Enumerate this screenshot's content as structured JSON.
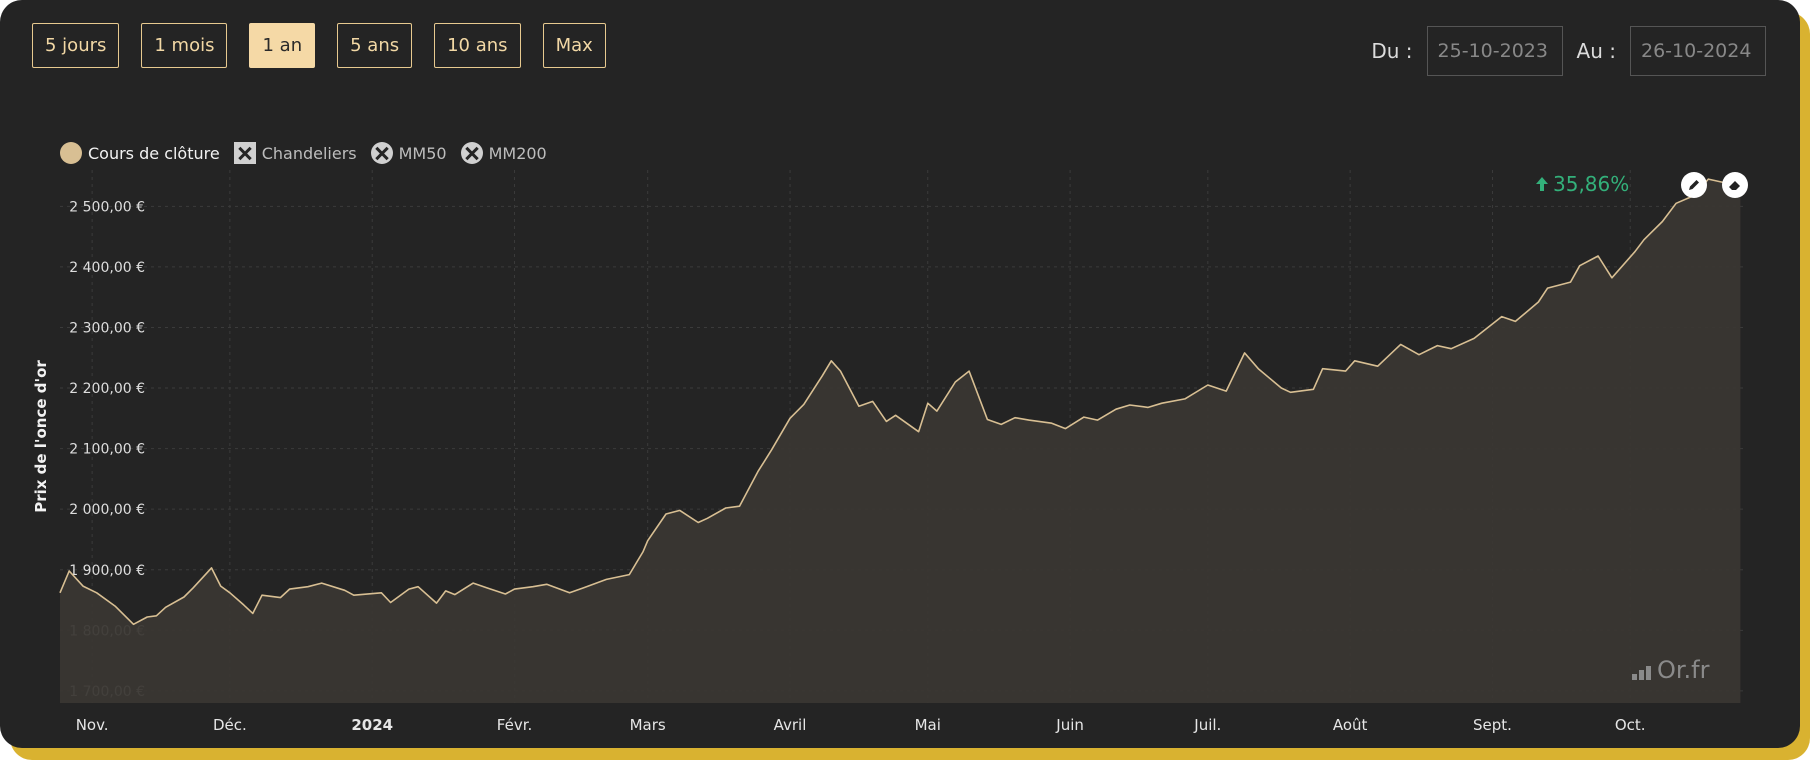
{
  "range_buttons": [
    {
      "label": "5 jours",
      "active": false
    },
    {
      "label": "1 mois",
      "active": false
    },
    {
      "label": "1 an",
      "active": true
    },
    {
      "label": "5 ans",
      "active": false
    },
    {
      "label": "10 ans",
      "active": false
    },
    {
      "label": "Max",
      "active": false
    }
  ],
  "date_range": {
    "from_label": "Du :",
    "from_value": "25-10-2023",
    "to_label": "Au :",
    "to_value": "26-10-2024"
  },
  "legend": [
    {
      "label": "Cours de clôture",
      "enabled": true
    },
    {
      "label": "Chandeliers",
      "enabled": false
    },
    {
      "label": "MM50",
      "enabled": false
    },
    {
      "label": "MM200",
      "enabled": false
    }
  ],
  "performance": "35,86%",
  "performance_color": "#33b07a",
  "brand": "Or.fr",
  "colors": {
    "line": "#d8bf93",
    "area": "#3a3733",
    "accent": "#f5d9a6",
    "frame": "#d9b230"
  },
  "chart_data": {
    "type": "area",
    "ylabel": "Prix de l'once d'or",
    "ylim": [
      1680,
      2560
    ],
    "yticks": [
      1700,
      1800,
      1900,
      2000,
      2100,
      2200,
      2300,
      2400,
      2500
    ],
    "ytick_labels": [
      "1 700,00 €",
      "1 800,00 €",
      "1 900,00 €",
      "2 000,00 €",
      "2 100,00 €",
      "2 200,00 €",
      "2 300,00 €",
      "2 400,00 €",
      "2 500,00 €"
    ],
    "xlim": [
      "2023-10-25",
      "2024-10-26"
    ],
    "xticks": [
      {
        "date": "2023-11-01",
        "label": "Nov.",
        "bold": false
      },
      {
        "date": "2023-12-01",
        "label": "Déc.",
        "bold": false
      },
      {
        "date": "2024-01-01",
        "label": "2024",
        "bold": true
      },
      {
        "date": "2024-02-01",
        "label": "Févr.",
        "bold": false
      },
      {
        "date": "2024-03-01",
        "label": "Mars",
        "bold": false
      },
      {
        "date": "2024-04-01",
        "label": "Avril",
        "bold": false
      },
      {
        "date": "2024-05-01",
        "label": "Mai",
        "bold": false
      },
      {
        "date": "2024-06-01",
        "label": "Juin",
        "bold": false
      },
      {
        "date": "2024-07-01",
        "label": "Juil.",
        "bold": false
      },
      {
        "date": "2024-08-01",
        "label": "Août",
        "bold": false
      },
      {
        "date": "2024-09-01",
        "label": "Sept.",
        "bold": false
      },
      {
        "date": "2024-10-01",
        "label": "Oct.",
        "bold": false
      }
    ],
    "grid": true,
    "series": [
      {
        "x": [
          "2023-10-25",
          "2023-10-27",
          "2023-10-30",
          "2023-11-02",
          "2023-11-06",
          "2023-11-08",
          "2023-11-10",
          "2023-11-13",
          "2023-11-15",
          "2023-11-17",
          "2023-11-21",
          "2023-11-23",
          "2023-11-27",
          "2023-11-29",
          "2023-12-01",
          "2023-12-04",
          "2023-12-06",
          "2023-12-08",
          "2023-12-12",
          "2023-12-14",
          "2023-12-18",
          "2023-12-21",
          "2023-12-26",
          "2023-12-28",
          "2024-01-03",
          "2024-01-05",
          "2024-01-09",
          "2024-01-11",
          "2024-01-15",
          "2024-01-17",
          "2024-01-19",
          "2024-01-23",
          "2024-01-26",
          "2024-01-30",
          "2024-02-01",
          "2024-02-05",
          "2024-02-08",
          "2024-02-13",
          "2024-02-16",
          "2024-02-21",
          "2024-02-26",
          "2024-02-29",
          "2024-03-01",
          "2024-03-05",
          "2024-03-08",
          "2024-03-12",
          "2024-03-14",
          "2024-03-18",
          "2024-03-21",
          "2024-03-25",
          "2024-03-28",
          "2024-04-01",
          "2024-04-04",
          "2024-04-08",
          "2024-04-10",
          "2024-04-12",
          "2024-04-16",
          "2024-04-19",
          "2024-04-22",
          "2024-04-24",
          "2024-04-29",
          "2024-05-01",
          "2024-05-03",
          "2024-05-07",
          "2024-05-10",
          "2024-05-14",
          "2024-05-17",
          "2024-05-20",
          "2024-05-23",
          "2024-05-28",
          "2024-05-31",
          "2024-06-04",
          "2024-06-07",
          "2024-06-11",
          "2024-06-14",
          "2024-06-18",
          "2024-06-21",
          "2024-06-26",
          "2024-07-01",
          "2024-07-05",
          "2024-07-09",
          "2024-07-12",
          "2024-07-17",
          "2024-07-19",
          "2024-07-24",
          "2024-07-26",
          "2024-07-31",
          "2024-08-02",
          "2024-08-07",
          "2024-08-12",
          "2024-08-16",
          "2024-08-20",
          "2024-08-23",
          "2024-08-28",
          "2024-09-03",
          "2024-09-06",
          "2024-09-11",
          "2024-09-13",
          "2024-09-18",
          "2024-09-20",
          "2024-09-24",
          "2024-09-27",
          "2024-10-02",
          "2024-10-04",
          "2024-10-08",
          "2024-10-11",
          "2024-10-15",
          "2024-10-18",
          "2024-10-21",
          "2024-10-23",
          "2024-10-25"
        ],
        "values": [
          1862,
          1898,
          1873,
          1862,
          1840,
          1825,
          1810,
          1822,
          1824,
          1838,
          1855,
          1870,
          1903,
          1873,
          1862,
          1842,
          1828,
          1858,
          1854,
          1868,
          1872,
          1878,
          1866,
          1858,
          1862,
          1846,
          1868,
          1872,
          1845,
          1865,
          1859,
          1878,
          1870,
          1860,
          1868,
          1872,
          1876,
          1862,
          1870,
          1884,
          1892,
          1930,
          1948,
          1992,
          1998,
          1978,
          1985,
          2002,
          2005,
          2062,
          2098,
          2150,
          2173,
          2220,
          2245,
          2228,
          2170,
          2178,
          2145,
          2155,
          2128,
          2175,
          2162,
          2210,
          2228,
          2148,
          2140,
          2151,
          2147,
          2142,
          2133,
          2152,
          2147,
          2165,
          2172,
          2168,
          2175,
          2182,
          2205,
          2195,
          2258,
          2232,
          2200,
          2193,
          2198,
          2232,
          2228,
          2245,
          2236,
          2272,
          2255,
          2270,
          2265,
          2282,
          2318,
          2310,
          2342,
          2365,
          2375,
          2402,
          2418,
          2382,
          2425,
          2445,
          2475,
          2505,
          2518,
          2545,
          2540,
          2535,
          2545
        ]
      }
    ]
  }
}
